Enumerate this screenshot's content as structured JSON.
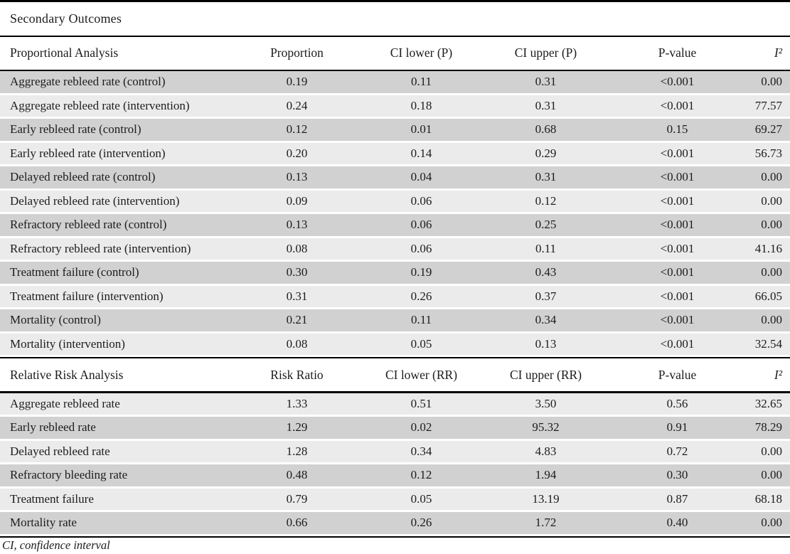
{
  "table": {
    "title": "Secondary Outcomes",
    "footnote": "CI, confidence interval",
    "sections": [
      {
        "name": "Proportional Analysis",
        "columns": [
          "Proportional Analysis",
          "Proportion",
          "CI lower (P)",
          "CI upper (P)",
          "P-value",
          "I²"
        ],
        "rows": [
          [
            "Aggregate rebleed rate (control)",
            "0.19",
            "0.11",
            "0.31",
            "<0.001",
            "0.00"
          ],
          [
            "Aggregate rebleed rate (intervention)",
            "0.24",
            "0.18",
            "0.31",
            "<0.001",
            "77.57"
          ],
          [
            "Early rebleed rate (control)",
            "0.12",
            "0.01",
            "0.68",
            "0.15",
            "69.27"
          ],
          [
            "Early rebleed rate (intervention)",
            "0.20",
            "0.14",
            "0.29",
            "<0.001",
            "56.73"
          ],
          [
            "Delayed rebleed rate (control)",
            "0.13",
            "0.04",
            "0.31",
            "<0.001",
            "0.00"
          ],
          [
            "Delayed rebleed rate (intervention)",
            "0.09",
            "0.06",
            "0.12",
            "<0.001",
            "0.00"
          ],
          [
            "Refractory rebleed rate (control)",
            "0.13",
            "0.06",
            "0.25",
            "<0.001",
            "0.00"
          ],
          [
            "Refractory rebleed rate (intervention)",
            "0.08",
            "0.06",
            "0.11",
            "<0.001",
            "41.16"
          ],
          [
            "Treatment failure (control)",
            "0.30",
            "0.19",
            "0.43",
            "<0.001",
            "0.00"
          ],
          [
            "Treatment failure (intervention)",
            "0.31",
            "0.26",
            "0.37",
            "<0.001",
            "66.05"
          ],
          [
            "Mortality (control)",
            "0.21",
            "0.11",
            "0.34",
            "<0.001",
            "0.00"
          ],
          [
            "Mortality (intervention)",
            "0.08",
            "0.05",
            "0.13",
            "<0.001",
            "32.54"
          ]
        ]
      },
      {
        "name": "Relative Risk Analysis",
        "columns": [
          "Relative Risk Analysis",
          "Risk Ratio",
          "CI lower (RR)",
          "CI upper (RR)",
          "P-value",
          "I²"
        ],
        "rows": [
          [
            "Aggregate rebleed rate",
            "1.33",
            "0.51",
            "3.50",
            "0.56",
            "32.65"
          ],
          [
            "Early rebleed rate",
            "1.29",
            "0.02",
            "95.32",
            "0.91",
            "78.29"
          ],
          [
            "Delayed rebleed rate",
            "1.28",
            "0.34",
            "4.83",
            "0.72",
            "0.00"
          ],
          [
            "Refractory bleeding rate",
            "0.48",
            "0.12",
            "1.94",
            "0.30",
            "0.00"
          ],
          [
            "Treatment failure",
            "0.79",
            "0.05",
            "13.19",
            "0.87",
            "68.18"
          ],
          [
            "Mortality rate",
            "0.66",
            "0.26",
            "1.72",
            "0.40",
            "0.00"
          ]
        ]
      }
    ]
  }
}
